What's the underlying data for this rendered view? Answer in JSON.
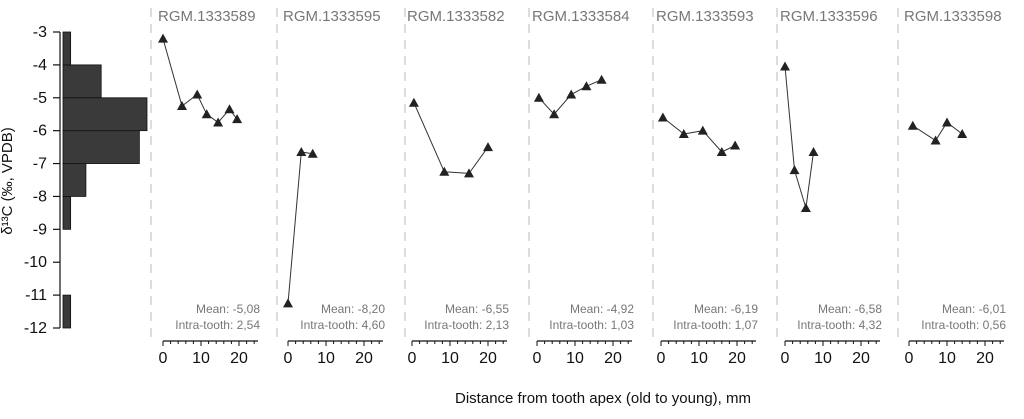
{
  "chart_data": {
    "type": "line",
    "ylabel": "δ¹³C (‰, VPDB)",
    "xlabel": "Distance from tooth apex (old to young), mm",
    "ylim": [
      -12,
      -3
    ],
    "yticks": [
      "-3",
      "-4",
      "-5",
      "-6",
      "-7",
      "-8",
      "-9",
      "-10",
      "-11",
      "-12"
    ],
    "xlim": [
      0,
      25
    ],
    "xticks": [
      "0",
      "10",
      "20"
    ],
    "histogram": {
      "orientation": "horizontal",
      "bins": [
        {
          "from": -12,
          "to": -11,
          "count": 1
        },
        {
          "from": -11,
          "to": -10,
          "count": 0
        },
        {
          "from": -10,
          "to": -9,
          "count": 0
        },
        {
          "from": -9,
          "to": -8,
          "count": 1
        },
        {
          "from": -8,
          "to": -7,
          "count": 3
        },
        {
          "from": -7,
          "to": -6,
          "count": 10
        },
        {
          "from": -6,
          "to": -5,
          "count": 11
        },
        {
          "from": -5,
          "to": -4,
          "count": 5
        },
        {
          "from": -4,
          "to": -3,
          "count": 1
        }
      ]
    },
    "panels": [
      {
        "title": "RGM.1333589",
        "mean_label": "Mean: -5,08",
        "intra_label": "Intra-tooth: 2,54",
        "x": [
          0,
          5,
          9,
          11.5,
          14.5,
          17.5,
          19.5
        ],
        "y": [
          -3.2,
          -5.25,
          -4.9,
          -5.5,
          -5.75,
          -5.35,
          -5.65
        ]
      },
      {
        "title": "RGM.1333595",
        "mean_label": "Mean: -8,20",
        "intra_label": "Intra-tooth: 4,60",
        "x": [
          0,
          3.5,
          6.5
        ],
        "y": [
          -11.25,
          -6.65,
          -6.7
        ]
      },
      {
        "title": "RGM.1333582",
        "mean_label": "Mean: -6,55",
        "intra_label": "Intra-tooth: 2,13",
        "x": [
          0.5,
          8.5,
          15,
          20
        ],
        "y": [
          -5.15,
          -7.25,
          -7.3,
          -6.5
        ]
      },
      {
        "title": "RGM.1333584",
        "mean_label": "Mean: -4,92",
        "intra_label": "Intra-tooth: 1,03",
        "x": [
          0.5,
          4.5,
          9,
          13,
          17
        ],
        "y": [
          -5.0,
          -5.5,
          -4.9,
          -4.65,
          -4.45
        ]
      },
      {
        "title": "RGM.1333593",
        "mean_label": "Mean: -6,19",
        "intra_label": "Intra-tooth: 1,07",
        "x": [
          0.5,
          6,
          11,
          16,
          19.5
        ],
        "y": [
          -5.6,
          -6.1,
          -6.0,
          -6.65,
          -6.45
        ]
      },
      {
        "title": "RGM.1333596",
        "mean_label": "Mean: -6,58",
        "intra_label": "Intra-tooth: 4,32",
        "x": [
          0,
          2.5,
          5.5,
          7.5
        ],
        "y": [
          -4.05,
          -7.2,
          -8.35,
          -6.65
        ]
      },
      {
        "title": "RGM.1333598",
        "mean_label": "Mean: -6,01",
        "intra_label": "Intra-tooth: 0,56",
        "x": [
          1,
          7,
          10,
          14
        ],
        "y": [
          -5.85,
          -6.3,
          -5.75,
          -6.1
        ]
      }
    ],
    "colors": {
      "line": "#333333",
      "marker": "#222222",
      "bar": "#3a3a3a",
      "divider": "#bbbbbb",
      "panel_text": "#777777"
    }
  }
}
